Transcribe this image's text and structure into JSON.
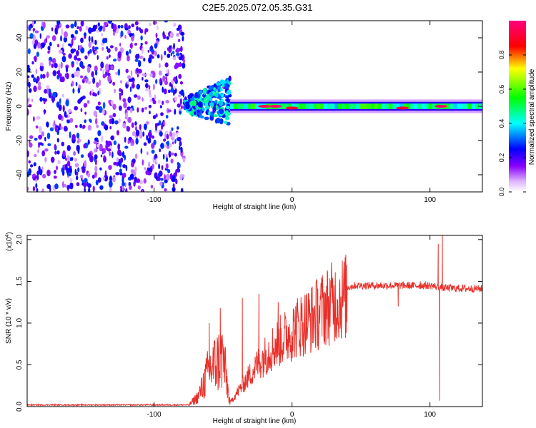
{
  "title": "C2E5.2025.072.05.35.G31",
  "chart_data": [
    {
      "type": "heatmap",
      "xlabel": "Height of straight line (km)",
      "ylabel": "Frequency (Hz)",
      "xlim": [
        -192,
        138
      ],
      "ylim": [
        -50,
        50
      ],
      "xticks": [
        -100,
        0,
        100
      ],
      "yticks": [
        -40,
        -20,
        0,
        20,
        40
      ],
      "colorbar": {
        "label": "Normalized spectral amplitude",
        "range": [
          0,
          1
        ],
        "ticks": [
          0.0,
          0.2,
          0.4,
          0.6,
          0.8
        ],
        "colors": [
          "#ffffff",
          "#e0b8ff",
          "#8a00ff",
          "#0000ff",
          "#00ffff",
          "#00ff00",
          "#ffff00",
          "#ff0000",
          "#ff0080"
        ]
      },
      "regions": [
        {
          "x_range": [
            -192,
            -78
          ],
          "description": "noise",
          "freq_range": [
            -50,
            50
          ],
          "amplitude": [
            0.05,
            0.3
          ]
        },
        {
          "x_range": [
            -78,
            -45
          ],
          "description": "emerging signal",
          "freq_range": [
            -12,
            18
          ],
          "amplitude": [
            0.2,
            0.5
          ]
        },
        {
          "x_range": [
            -45,
            138
          ],
          "description": "narrow band near 0 Hz",
          "freq_range": [
            -3,
            3
          ],
          "amplitude": [
            0.3,
            1.0
          ]
        }
      ],
      "peaks": [
        {
          "x": -20,
          "y": 0,
          "value": 0.95
        },
        {
          "x": -12,
          "y": 0,
          "value": 0.98
        },
        {
          "x": 0,
          "y": -1,
          "value": 0.9
        },
        {
          "x": 80,
          "y": -1,
          "value": 0.9
        },
        {
          "x": 108,
          "y": 0,
          "value": 0.97
        }
      ]
    },
    {
      "type": "line",
      "xlabel": "Height of straight line (km)",
      "ylabel": "SNR (10 * v/v)",
      "ymultiplier": "(x10",
      "ymultiplier_exp": "4",
      "ymultiplier_close": ")",
      "xlim": [
        -192,
        138
      ],
      "ylim": [
        0,
        2.05
      ],
      "xticks": [
        -100,
        0,
        100
      ],
      "yticks": [
        "0.0",
        "0.5",
        "1.0",
        "1.5",
        "2.0"
      ],
      "color": "#e8302a",
      "envelope": [
        {
          "x": -192,
          "y": 0.02
        },
        {
          "x": -75,
          "y": 0.02
        },
        {
          "x": -68,
          "y": 0.15
        },
        {
          "x": -60,
          "y": 0.55
        },
        {
          "x": -50,
          "y": 0.75
        },
        {
          "x": -45,
          "y": 0.05
        },
        {
          "x": -35,
          "y": 0.3
        },
        {
          "x": -25,
          "y": 0.55
        },
        {
          "x": -15,
          "y": 0.75
        },
        {
          "x": -5,
          "y": 0.9
        },
        {
          "x": 5,
          "y": 1.05
        },
        {
          "x": 15,
          "y": 1.15
        },
        {
          "x": 25,
          "y": 1.3
        },
        {
          "x": 35,
          "y": 1.4
        },
        {
          "x": 45,
          "y": 1.45
        },
        {
          "x": 60,
          "y": 1.45
        },
        {
          "x": 80,
          "y": 1.45
        },
        {
          "x": 100,
          "y": 1.45
        },
        {
          "x": 110,
          "y": 1.42
        },
        {
          "x": 138,
          "y": 1.41
        }
      ],
      "spikes": [
        {
          "x": -60,
          "y": 1.0
        },
        {
          "x": -52,
          "y": 1.18
        },
        {
          "x": -36,
          "y": 1.3
        },
        {
          "x": -24,
          "y": 1.35
        },
        {
          "x": -10,
          "y": 1.25
        },
        {
          "x": 77,
          "y": 1.2
        },
        {
          "x": 93,
          "y": 1.5
        },
        {
          "x": 106,
          "y": 1.95
        },
        {
          "x": 107,
          "y": 0.07
        },
        {
          "x": 109,
          "y": 2.05
        }
      ]
    }
  ]
}
